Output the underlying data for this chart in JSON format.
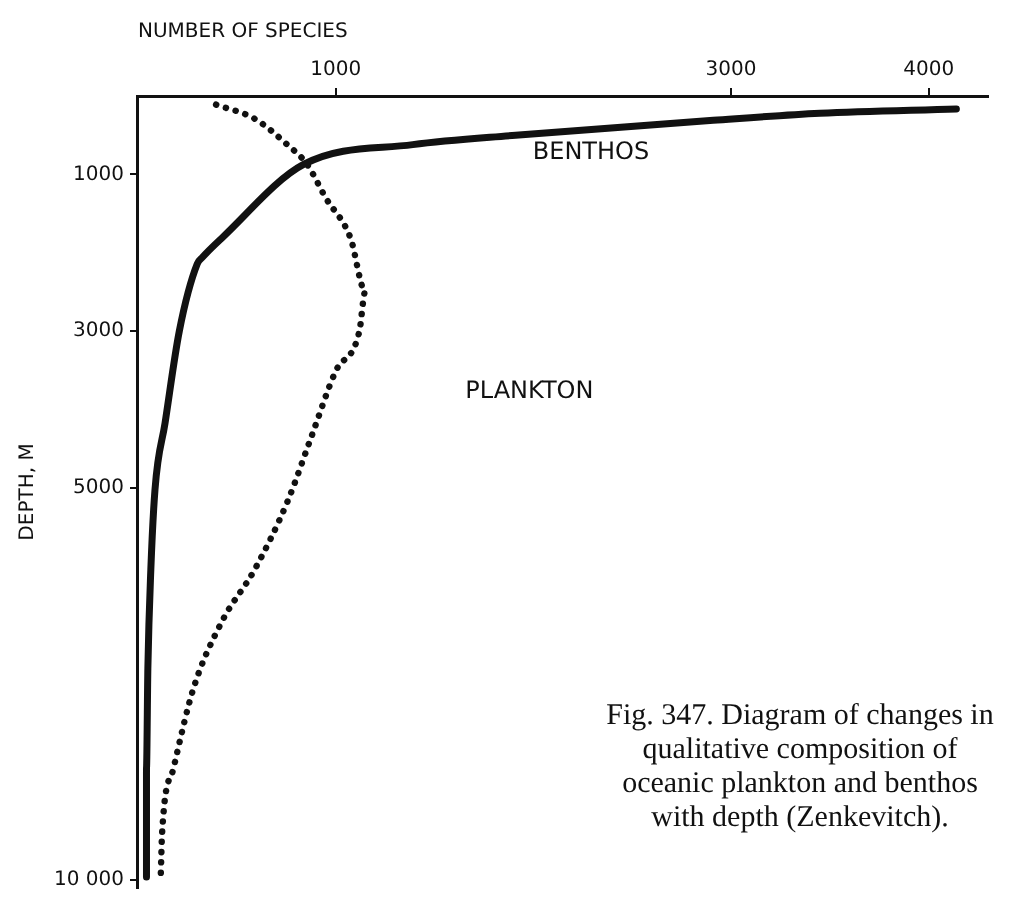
{
  "chart_data": {
    "type": "line",
    "xlabel": "NUMBER OF SPECIES",
    "ylabel": "DEPTH, M",
    "xlim": [
      0,
      4300
    ],
    "xticks": [
      1000,
      3000,
      4000
    ],
    "ylim": [
      10100,
      0
    ],
    "yticks": [
      1000,
      3000,
      5000,
      {
        "value": 10000,
        "label": "10 000"
      }
    ],
    "grid": false,
    "legend": false,
    "marker": "none",
    "series": [
      {
        "name": "BENTHOS",
        "color": "#111111",
        "line_style": "solid",
        "x": [
          4140,
          3450,
          2910,
          1910,
          1390,
          840,
          425,
          325,
          300,
          209,
          137,
          86,
          65,
          50,
          43,
          43
        ],
        "values": [
          165,
          220,
          310,
          500,
          620,
          870,
          1810,
          2060,
          2140,
          3000,
          4170,
          5020,
          6040,
          7300,
          8570,
          9960
        ]
      },
      {
        "name": "PLANKTON",
        "color": "#111111",
        "line_style": "dotted",
        "x": [
          395,
          590,
          755,
          855,
          950,
          1075,
          1150,
          1120,
          1000,
          878,
          755,
          590,
          425,
          280,
          180,
          122,
          115
        ],
        "values": [
          110,
          290,
          620,
          870,
          1300,
          1810,
          2490,
          3000,
          3510,
          4340,
          5180,
          6040,
          6700,
          7560,
          8570,
          9400,
          9960
        ]
      }
    ],
    "annotations": [
      "Fig. 347. Diagram of changes in qualitative composition of oceanic plankton and benthos with depth (Zenkevitch)."
    ]
  }
}
